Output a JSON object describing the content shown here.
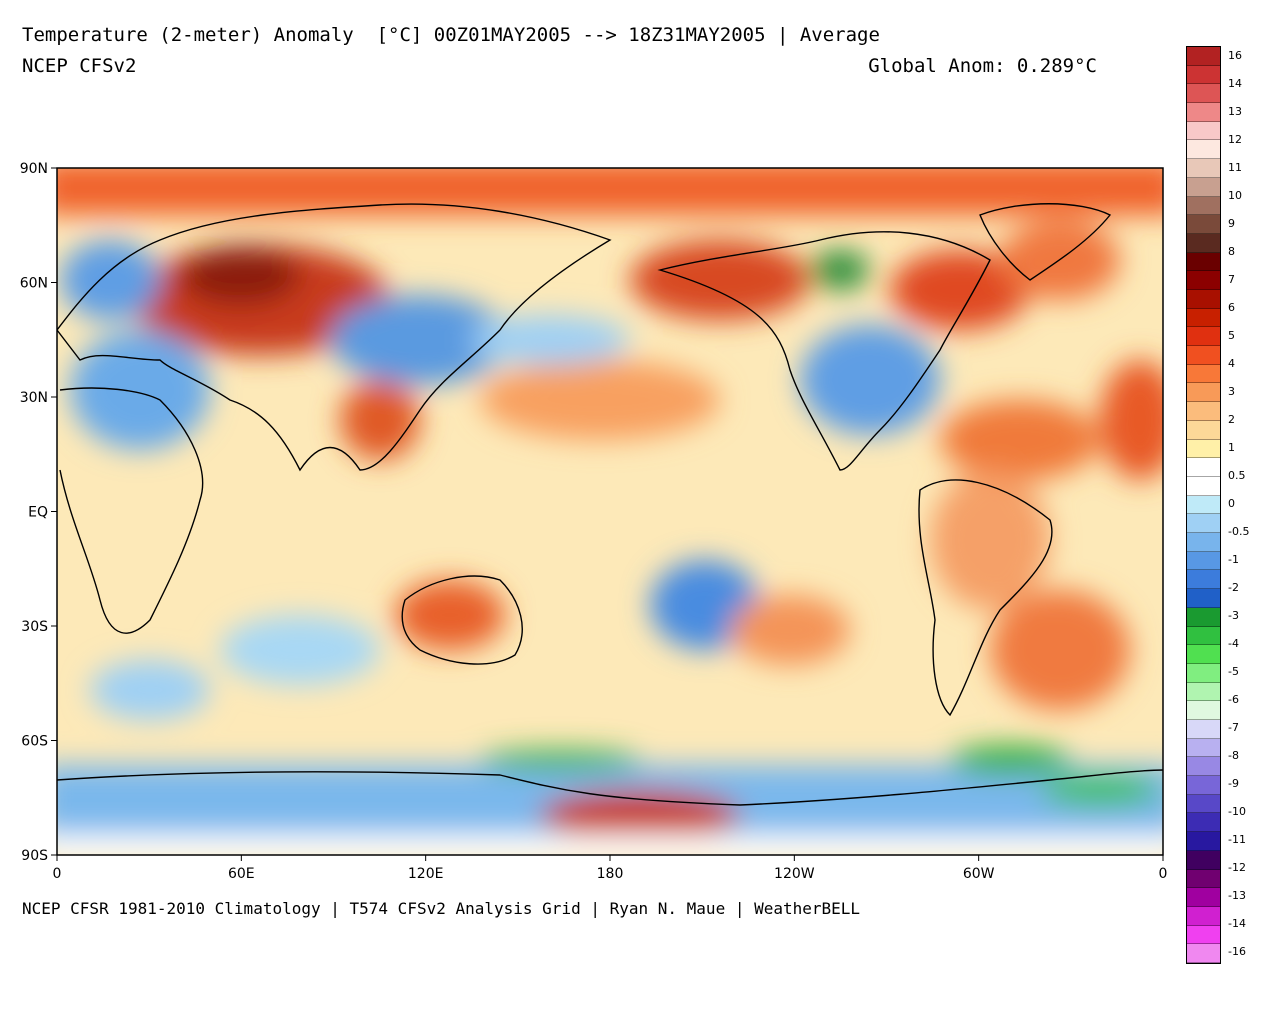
{
  "header": {
    "title": "Temperature (2-meter) Anomaly  [°C] 00Z01MAY2005 --> 18Z31MAY2005 | Average",
    "subtitle": "NCEP CFSv2",
    "global_anom": "Global Anom: 0.289°C"
  },
  "footer": {
    "credit": "NCEP CFSR 1981-2010 Climatology | T574 CFSv2 Analysis Grid | Ryan N. Maue | WeatherBELL"
  },
  "map": {
    "lat_ticks": [
      "90N",
      "60N",
      "30N",
      "EQ",
      "30S",
      "60S",
      "90S"
    ],
    "lon_ticks": [
      "0",
      "60E",
      "120E",
      "180",
      "120W",
      "60W",
      "0"
    ]
  },
  "colorbar": {
    "labels": [
      "16",
      "14",
      "13",
      "12",
      "11",
      "10",
      "9",
      "8",
      "7",
      "6",
      "5",
      "4",
      "3",
      "2",
      "1",
      "0.5",
      "0",
      "-0.5",
      "-1",
      "-2",
      "-3",
      "-4",
      "-5",
      "-6",
      "-7",
      "-8",
      "-9",
      "-10",
      "-11",
      "-12",
      "-13",
      "-14",
      "-16"
    ],
    "colors": [
      "#b22222",
      "#cc3333",
      "#dd5555",
      "#ee8888",
      "#f8c8c8",
      "#fde8e0",
      "#e8c8b8",
      "#c8a090",
      "#a07060",
      "#7a4a3a",
      "#5a2a20",
      "#6a0000",
      "#8b0000",
      "#a81000",
      "#c82000",
      "#e03010",
      "#f05020",
      "#f87838",
      "#f89a58",
      "#fbbc7c",
      "#fcd898",
      "#fff0a8",
      "#ffffff",
      "#ffffff",
      "#bfeaf8",
      "#9fd0f4",
      "#78b4ec",
      "#5898e4",
      "#3c7cdc",
      "#2060c8",
      "#1a9a30",
      "#30c040",
      "#50e050",
      "#80ee80",
      "#b0f4b0",
      "#e0f8e0",
      "#d8d8f8",
      "#b8b0f0",
      "#9888e4",
      "#7866d8",
      "#5848c8",
      "#3c2cb4",
      "#2818a0",
      "#400060",
      "#700070",
      "#a000a0",
      "#d020d0",
      "#f040f0",
      "#f088f0"
    ]
  }
}
